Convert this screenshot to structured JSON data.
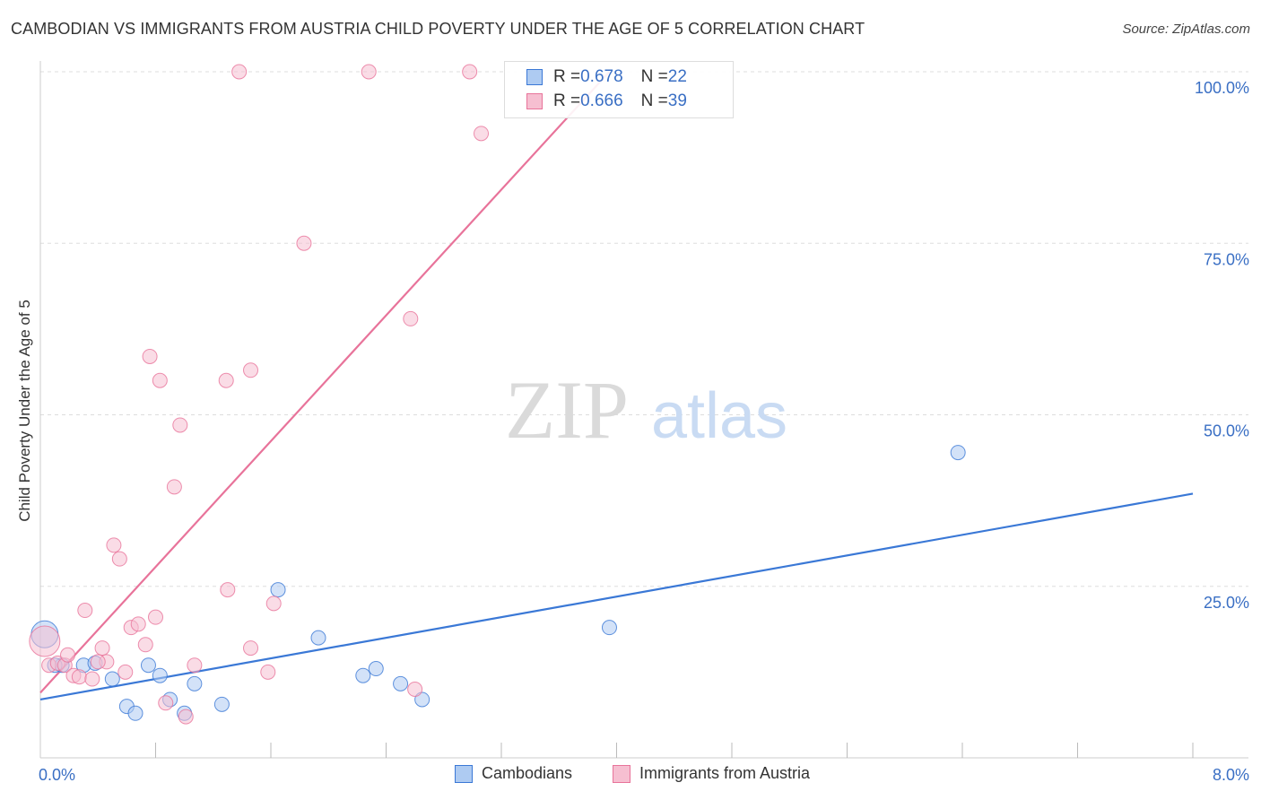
{
  "title": "CAMBODIAN VS IMMIGRANTS FROM AUSTRIA CHILD POVERTY UNDER THE AGE OF 5 CORRELATION CHART",
  "source": "Source: ZipAtlas.com",
  "watermark": {
    "zip": "ZIP",
    "atlas": "atlas"
  },
  "legend_stats": {
    "series1": {
      "r_label": "R = ",
      "r_value": "0.678",
      "n_label": "N = ",
      "n_value": "22"
    },
    "series2": {
      "r_label": "R = ",
      "r_value": "0.666",
      "n_label": "N = ",
      "n_value": "39"
    }
  },
  "colors": {
    "blue": "#3a78d6",
    "blue_fill": "#aecbf2",
    "pink": "#e8739a",
    "pink_fill": "#f6bfd1",
    "tick": "#3a6fc4",
    "grid": "#d9d9d9"
  },
  "chart_data": {
    "type": "scatter",
    "title": "CAMBODIAN VS IMMIGRANTS FROM AUSTRIA CHILD POVERTY UNDER THE AGE OF 5 CORRELATION CHART",
    "xlabel": "",
    "ylabel": "Child Poverty Under the Age of 5",
    "xlim": [
      0,
      8
    ],
    "ylim": [
      0,
      100
    ],
    "x_tick_labels": [
      "0.0%",
      "8.0%"
    ],
    "y_ticks": [
      25,
      50,
      75,
      100
    ],
    "y_tick_labels": [
      "25.0%",
      "50.0%",
      "75.0%",
      "100.0%"
    ],
    "series": [
      {
        "name": "Cambodians",
        "color": "#3a78d6",
        "points": [
          [
            0.03,
            18.0
          ],
          [
            0.15,
            13.5
          ],
          [
            0.3,
            13.5
          ],
          [
            0.38,
            13.8
          ],
          [
            0.5,
            11.5
          ],
          [
            0.6,
            7.5
          ],
          [
            0.66,
            6.5
          ],
          [
            0.75,
            13.5
          ],
          [
            0.83,
            12.0
          ],
          [
            0.9,
            8.5
          ],
          [
            1.0,
            6.5
          ],
          [
            1.07,
            10.8
          ],
          [
            1.26,
            7.8
          ],
          [
            1.65,
            24.5
          ],
          [
            1.93,
            17.5
          ],
          [
            2.24,
            12.0
          ],
          [
            2.33,
            13.0
          ],
          [
            2.5,
            10.8
          ],
          [
            2.65,
            8.5
          ],
          [
            3.95,
            19.0
          ],
          [
            6.37,
            44.5
          ],
          [
            0.1,
            13.5
          ]
        ],
        "trend": {
          "x": [
            0,
            8
          ],
          "y": [
            8.5,
            38.5
          ]
        }
      },
      {
        "name": "Immigrants from Austria",
        "color": "#e8739a",
        "points": [
          [
            0.03,
            17.0
          ],
          [
            0.06,
            13.5
          ],
          [
            0.12,
            13.8
          ],
          [
            0.17,
            13.5
          ],
          [
            0.19,
            15.0
          ],
          [
            0.23,
            12.0
          ],
          [
            0.27,
            11.8
          ],
          [
            0.31,
            21.5
          ],
          [
            0.36,
            11.5
          ],
          [
            0.43,
            16.0
          ],
          [
            0.46,
            14.0
          ],
          [
            0.51,
            31.0
          ],
          [
            0.55,
            29.0
          ],
          [
            0.59,
            12.5
          ],
          [
            0.63,
            19.0
          ],
          [
            0.68,
            19.5
          ],
          [
            0.73,
            16.5
          ],
          [
            0.76,
            58.5
          ],
          [
            0.8,
            20.5
          ],
          [
            0.83,
            55.0
          ],
          [
            0.87,
            8.0
          ],
          [
            0.93,
            39.5
          ],
          [
            0.97,
            48.5
          ],
          [
            1.01,
            6.0
          ],
          [
            1.07,
            13.5
          ],
          [
            1.29,
            55.0
          ],
          [
            1.3,
            24.5
          ],
          [
            1.38,
            100
          ],
          [
            1.46,
            56.5
          ],
          [
            1.46,
            16.0
          ],
          [
            1.58,
            12.5
          ],
          [
            1.62,
            22.5
          ],
          [
            1.83,
            75.0
          ],
          [
            2.28,
            100
          ],
          [
            2.57,
            64.0
          ],
          [
            2.6,
            10.0
          ],
          [
            2.98,
            100
          ],
          [
            3.06,
            91.0
          ],
          [
            0.4,
            14.0
          ]
        ],
        "trend": {
          "x": [
            0,
            3.95
          ],
          "y": [
            9.5,
            100
          ]
        }
      }
    ]
  },
  "bottom_legend": [
    {
      "label": "Cambodians"
    },
    {
      "label": "Immigrants from Austria"
    }
  ]
}
